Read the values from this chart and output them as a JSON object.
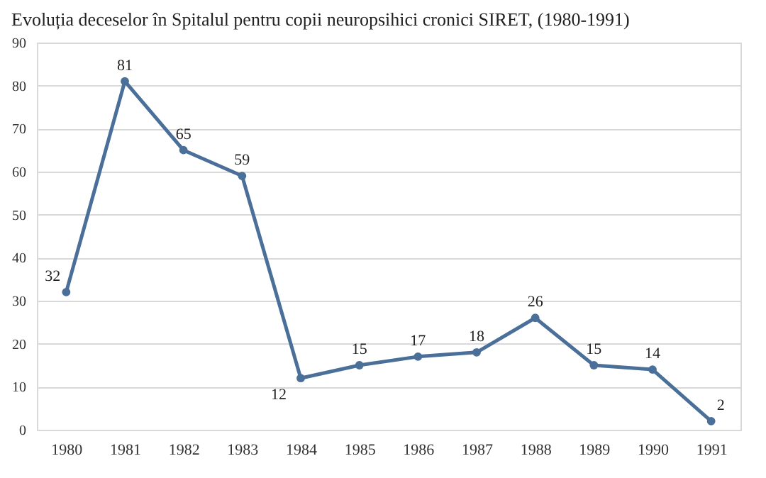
{
  "chart_data": {
    "type": "line",
    "title": "Evoluția deceselor în Spitalul pentru copii neuropsihici cronici SIRET, (1980-1991)",
    "categories": [
      "1980",
      "1981",
      "1982",
      "1983",
      "1984",
      "1985",
      "1986",
      "1987",
      "1988",
      "1989",
      "1990",
      "1991"
    ],
    "series": [
      {
        "color": "#4a6f99",
        "values": [
          32,
          81,
          65,
          59,
          12,
          15,
          17,
          18,
          26,
          15,
          14,
          2
        ]
      }
    ],
    "ylim": [
      0,
      90
    ],
    "yticks": [
      0,
      10,
      20,
      30,
      40,
      50,
      60,
      70,
      80,
      90
    ],
    "grid": "y",
    "marker": "circle",
    "line_style": "solid",
    "data_labels": true
  }
}
